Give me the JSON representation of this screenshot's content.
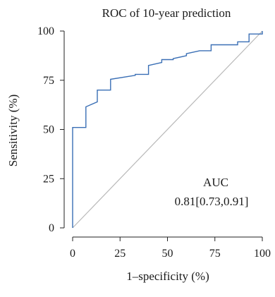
{
  "chart_data": {
    "type": "line",
    "title": "ROC of 10-year prediction",
    "xlabel": "1–specificity (%)",
    "ylabel": "Sensitivity (%)",
    "xlim": [
      0,
      100
    ],
    "ylim": [
      0,
      100
    ],
    "x_ticks": [
      "0",
      "25",
      "50",
      "75",
      "100"
    ],
    "y_ticks": [
      "0",
      "25",
      "50",
      "75",
      "100"
    ],
    "grid": false,
    "annotation": {
      "label": "AUC",
      "value": "0.81[0.73,0.91]"
    },
    "series": [
      {
        "color": "#3a6fb5",
        "points": [
          [
            0,
            0
          ],
          [
            0,
            51
          ],
          [
            7,
            51
          ],
          [
            7,
            61.5
          ],
          [
            13,
            64
          ],
          [
            13,
            70
          ],
          [
            20,
            70
          ],
          [
            20,
            75.5
          ],
          [
            33,
            77.5
          ],
          [
            33,
            78
          ],
          [
            40,
            78
          ],
          [
            40,
            82.5
          ],
          [
            47,
            84
          ],
          [
            47,
            85.5
          ],
          [
            53,
            85.5
          ],
          [
            53,
            86
          ],
          [
            60,
            87.5
          ],
          [
            60,
            88.5
          ],
          [
            67,
            90
          ],
          [
            73,
            90
          ],
          [
            73,
            93
          ],
          [
            87,
            93
          ],
          [
            87,
            94.5
          ],
          [
            93,
            94.5
          ],
          [
            93,
            98.5
          ],
          [
            100,
            98.5
          ],
          [
            100,
            100
          ]
        ]
      },
      {
        "color": "#b8b8b8",
        "points": [
          [
            0,
            0
          ],
          [
            100,
            100
          ]
        ]
      }
    ]
  }
}
